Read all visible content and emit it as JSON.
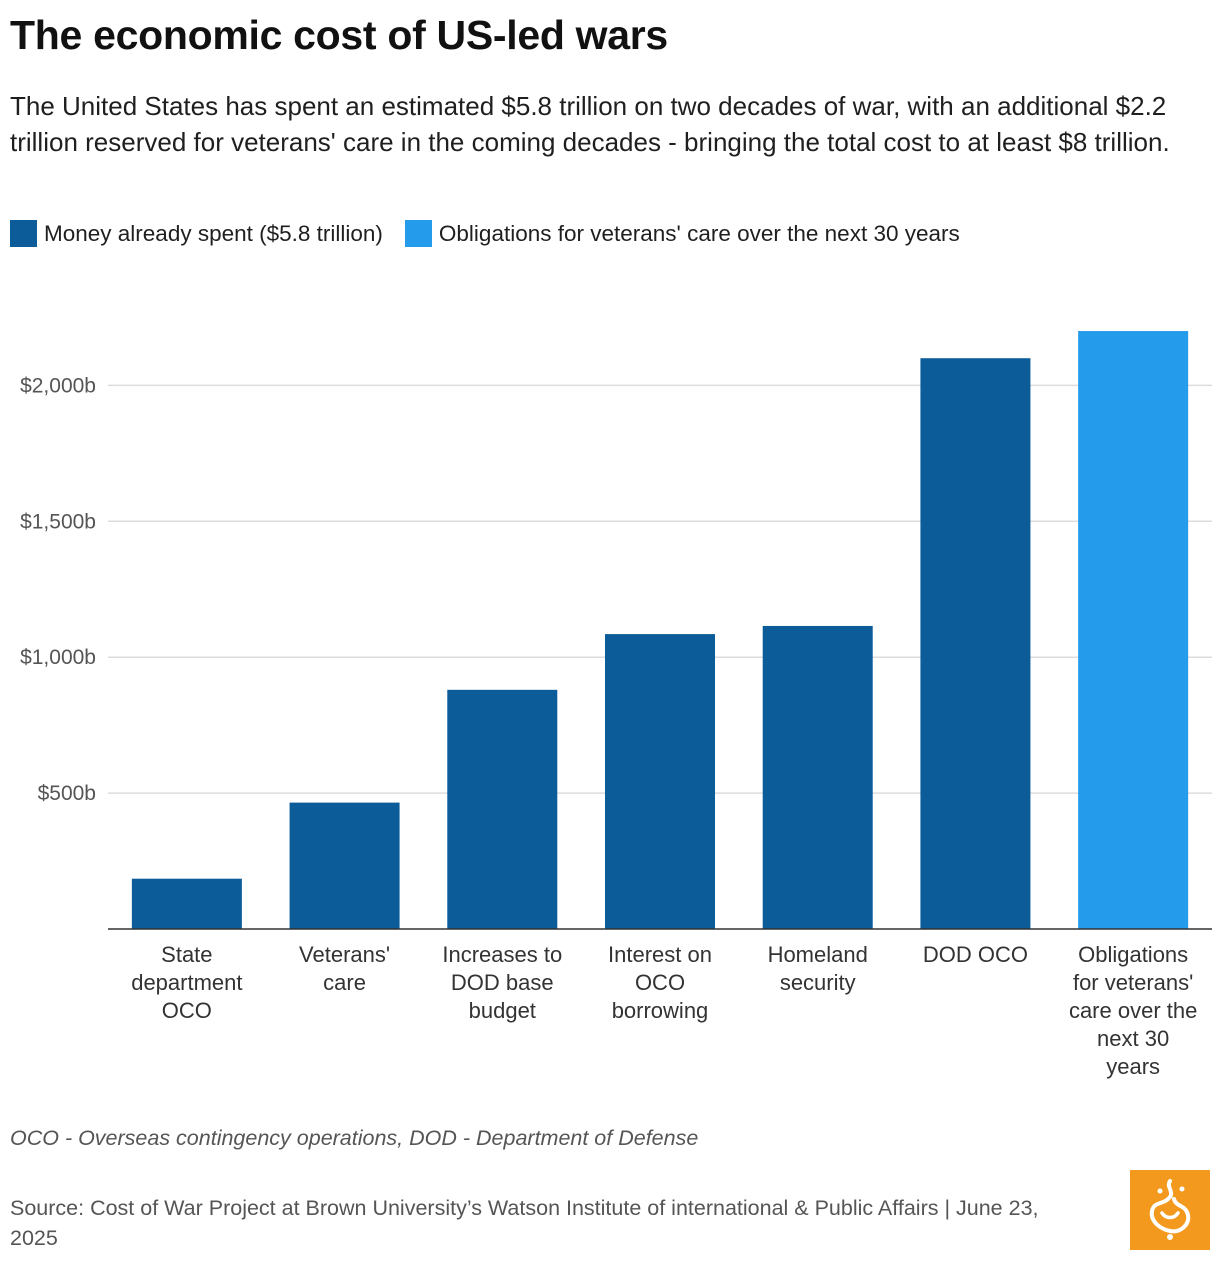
{
  "title": "The economic cost of US-led wars",
  "subtitle": "The United States has spent an estimated $5.8 trillion on two decades of war, with an additional $2.2 trillion reserved for veterans' care in the coming decades - bringing the total cost to at least $8 trillion.",
  "legend": [
    {
      "label": "Money already spent ($5.8 trillion)",
      "color": "#0b5c99"
    },
    {
      "label": "Obligations for veterans' care over the next 30 years",
      "color": "#259beb"
    }
  ],
  "chart_data": {
    "type": "bar",
    "categories": [
      "State department OCO",
      "Veterans' care",
      "Increases to DOD base budget",
      "Interest on OCO borrowing",
      "Homeland security",
      "DOD OCO",
      "Obligations for veterans' care over the next 30 years"
    ],
    "category_lines": [
      [
        "State",
        "department",
        "OCO"
      ],
      [
        "Veterans'",
        "care"
      ],
      [
        "Increases to",
        "DOD base",
        "budget"
      ],
      [
        "Interest on",
        "OCO",
        "borrowing"
      ],
      [
        "Homeland",
        "security"
      ],
      [
        "DOD OCO"
      ],
      [
        "Obligations",
        "for veterans'",
        "care over the",
        "next 30",
        "years"
      ]
    ],
    "values": [
      185,
      465,
      880,
      1085,
      1115,
      2100,
      2200
    ],
    "series_index": [
      0,
      0,
      0,
      0,
      0,
      0,
      1
    ],
    "series_colors": [
      "#0b5c99",
      "#259beb"
    ],
    "yticks": [
      500,
      1000,
      1500,
      2000
    ],
    "ytick_labels": [
      "$500b",
      "$1,000b",
      "$1,500b",
      "$2,000b"
    ],
    "ylim": [
      0,
      2200
    ],
    "grid": true,
    "title": "The economic cost of US-led wars",
    "xlabel": "",
    "ylabel": ""
  },
  "footnote": "OCO - Overseas contingency operations, DOD - Department of Defense",
  "source": "Source: Cost of War Project at Brown University’s Watson Institute of international & Public Affairs | June 23, 2025",
  "logo_icon": "al-jazeera-logo-icon"
}
